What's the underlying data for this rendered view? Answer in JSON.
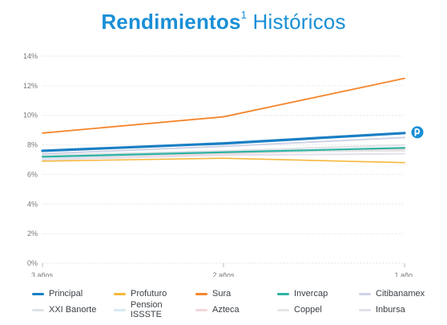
{
  "title": {
    "bold": "Rendimientos",
    "sup": "1",
    "rest": "Históricos"
  },
  "chart_data": {
    "type": "line",
    "x": [
      "3 años",
      "2 años",
      "1 año"
    ],
    "ylim": [
      0,
      14
    ],
    "yticks": [
      "0%",
      "2%",
      "4%",
      "6%",
      "8%",
      "10%",
      "12%",
      "14%"
    ],
    "grid": true,
    "legend_position": "bottom",
    "series": [
      {
        "name": "Principal",
        "values": [
          7.6,
          8.1,
          8.8
        ],
        "color": "#1a7fc4",
        "width": 3.2
      },
      {
        "name": "Profuturo",
        "values": [
          6.9,
          7.1,
          6.8
        ],
        "color": "#f5b83d",
        "width": 1.6
      },
      {
        "name": "Sura",
        "values": [
          8.8,
          9.9,
          12.5
        ],
        "color": "#f5862d",
        "width": 1.8
      },
      {
        "name": "Invercap",
        "values": [
          7.2,
          7.5,
          7.8
        ],
        "color": "#2fb3a3",
        "width": 2.2
      },
      {
        "name": "Citibanamex",
        "values": [
          7.4,
          7.9,
          8.5
        ],
        "color": "#cfd3e6",
        "width": 2.0
      },
      {
        "name": "XXI Banorte",
        "values": [
          7.3,
          7.6,
          8.0
        ],
        "color": "#dfe2e6",
        "width": 2.0
      },
      {
        "name": "Pension ISSSTE",
        "values": [
          7.1,
          7.5,
          7.8
        ],
        "color": "#d8e8f2",
        "width": 2.0
      },
      {
        "name": "Azteca",
        "values": [
          7.0,
          7.4,
          7.7
        ],
        "color": "#f4d6da",
        "width": 2.0
      },
      {
        "name": "Coppel",
        "values": [
          7.2,
          7.5,
          7.6
        ],
        "color": "#e6e6e6",
        "width": 2.0
      },
      {
        "name": "Inbursa",
        "values": [
          7.0,
          7.3,
          7.4
        ],
        "color": "#e3e0ec",
        "width": 2.0
      }
    ]
  },
  "marker": {
    "icon": "principal-logo-icon",
    "color": "#1a8fd6"
  }
}
